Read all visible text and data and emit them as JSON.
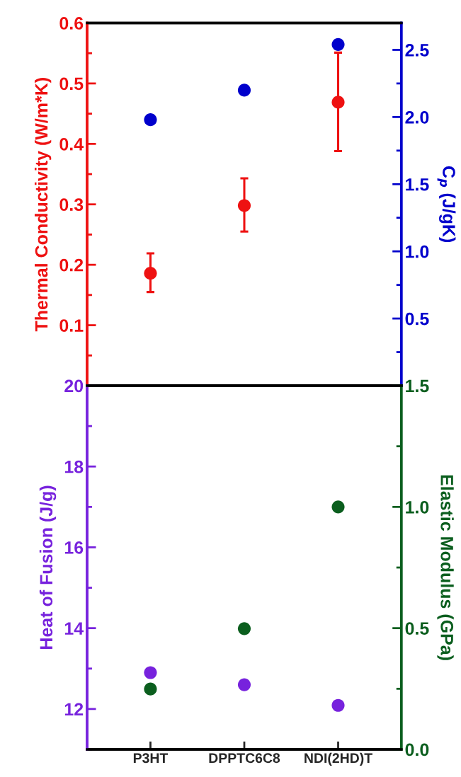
{
  "chart_data": [
    {
      "type": "scatter",
      "categories": [
        null,
        null,
        null
      ],
      "ylabel": "Thermal Conductivity (W/m*K)",
      "y2label": "C$_{p}$ (J/gK)",
      "ylim": [
        0,
        0.6
      ],
      "yticks": [
        0.1,
        0.2,
        0.3,
        0.4,
        0.5,
        0.6
      ],
      "y2lim": [
        0,
        2.7
      ],
      "y2ticks": [
        0.5,
        {
          "value": 1,
          "label": "1.0"
        },
        1.5,
        {
          "value": 2,
          "label": "2.0"
        },
        2.5
      ],
      "tick_labels": "y",
      "marker": "circle",
      "series": [
        {
          "color": "#ee1111",
          "values": [
            0.186,
            0.298,
            0.469
          ],
          "errors": [
            [
              0.155,
              0.219
            ],
            [
              0.255,
              0.343
            ],
            [
              0.388,
              0.551
            ]
          ]
        },
        {
          "color": "#0000cc",
          "axis": "y2",
          "values": [
            1.98,
            2.2,
            2.54
          ]
        }
      ]
    },
    {
      "type": "scatter",
      "categories": [
        "P3HT",
        "DPPTC6C8",
        "NDI(2HD)T"
      ],
      "ylabel": "Heat of Fusion (J/g)",
      "y2label": "Elastic Modulus (GPa)",
      "ylim": [
        11,
        20
      ],
      "yticks": [
        12,
        14,
        16,
        18,
        20
      ],
      "y2lim": [
        0,
        1.5
      ],
      "y2ticks": [
        {
          "value": 0,
          "label": "0.0"
        },
        0.5,
        {
          "value": 1,
          "label": "1.0"
        },
        1.5
      ],
      "marker": "circle",
      "series": [
        {
          "color": "#7722dd",
          "values": [
            12.9,
            12.6,
            12.09
          ]
        },
        {
          "color": "#0b5e1e",
          "axis": "y2",
          "values": [
            0.249,
            0.498,
            1.0
          ]
        }
      ]
    }
  ]
}
